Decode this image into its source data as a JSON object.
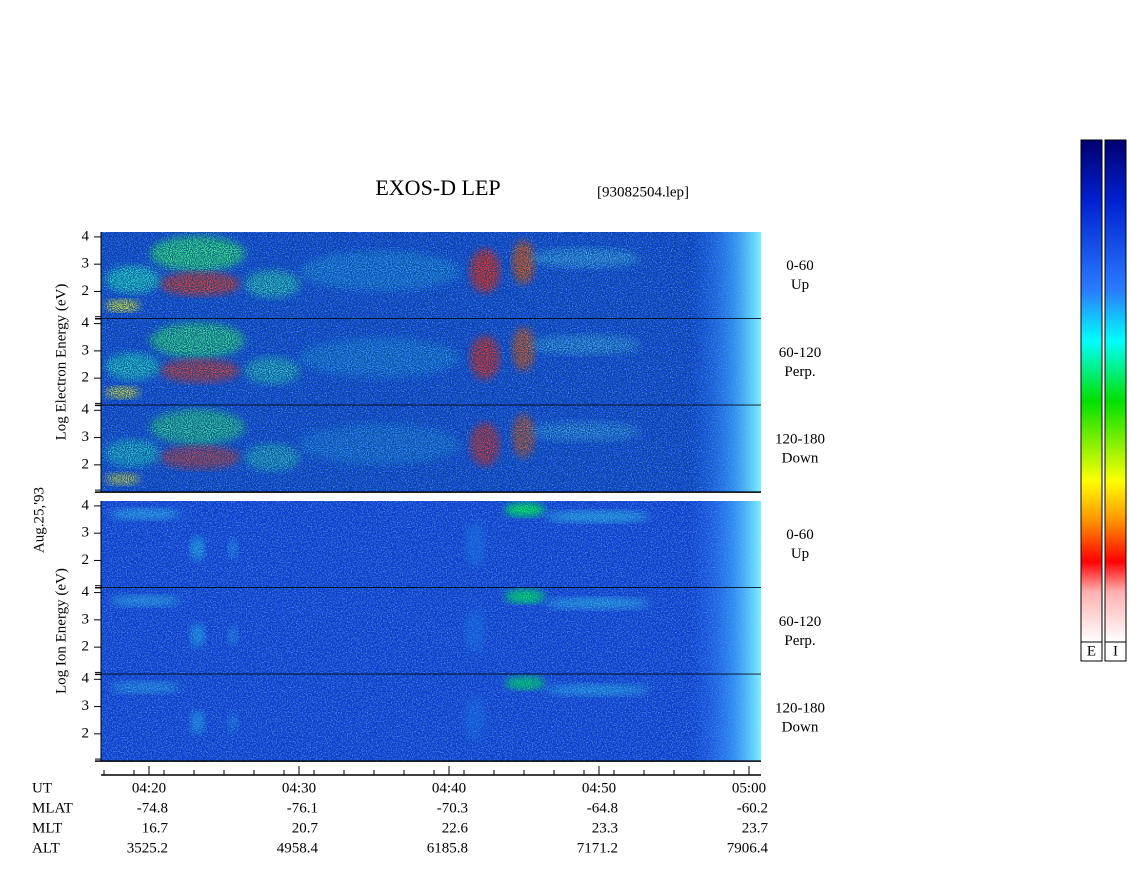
{
  "chart_data": {
    "type": "spectrogram",
    "title": "EXOS-D LEP",
    "subtitle": "[93082504.lep]",
    "date_label": "Aug.25,'93",
    "xlabel": "UT",
    "xlim": [
      16.8,
      60.8
    ],
    "xticks": [
      {
        "value": 20,
        "label": "04:20"
      },
      {
        "value": 30,
        "label": "04:30"
      },
      {
        "value": 40,
        "label": "04:40"
      },
      {
        "value": 50,
        "label": "04:50"
      },
      {
        "value": 60,
        "label": "05:00"
      }
    ],
    "ylim": [
      1,
      4.18
    ],
    "yticks": [
      2,
      3,
      4
    ],
    "groups": [
      {
        "ylabel": "Log Electron Energy (eV)",
        "panels": [
          {
            "angle": "0-60",
            "direction": "Up"
          },
          {
            "angle": "60-120",
            "direction": "Perp."
          },
          {
            "angle": "120-180",
            "direction": "Down"
          }
        ]
      },
      {
        "ylabel": "Log Ion Energy (eV)",
        "panels": [
          {
            "angle": "0-60",
            "direction": "Up"
          },
          {
            "angle": "60-120",
            "direction": "Perp."
          },
          {
            "angle": "120-180",
            "direction": "Down"
          }
        ]
      }
    ],
    "rows": [
      {
        "name": "MLAT",
        "values": [
          -74.8,
          -76.1,
          -70.3,
          -64.8,
          -60.2
        ]
      },
      {
        "name": "MLT",
        "values": [
          16.7,
          20.7,
          22.6,
          23.3,
          23.7
        ]
      },
      {
        "name": "ALT",
        "values": [
          3525.2,
          4958.4,
          6185.8,
          7171.2,
          7906.4
        ]
      }
    ],
    "colorbars": [
      "E",
      "I"
    ]
  }
}
